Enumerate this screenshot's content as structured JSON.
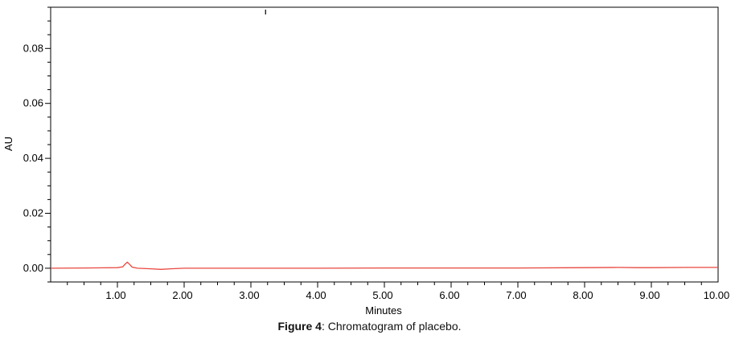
{
  "chart_data": {
    "type": "line",
    "xlabel": "Minutes",
    "ylabel": "AU",
    "xlim": [
      0,
      10
    ],
    "ylim": [
      -0.005,
      0.095
    ],
    "x_ticks": [
      1,
      2,
      3,
      4,
      5,
      6,
      7,
      8,
      9,
      10
    ],
    "x_tick_labels": [
      "1.00",
      "2.00",
      "3.00",
      "4.00",
      "5.00",
      "6.00",
      "7.00",
      "8.00",
      "9.00",
      "10.00"
    ],
    "y_ticks": [
      0,
      0.02,
      0.04,
      0.06,
      0.08
    ],
    "y_tick_labels": [
      "0.00",
      "0.02",
      "0.04",
      "0.06",
      "0.08"
    ],
    "grid": false,
    "series": [
      {
        "color": "#e8473f",
        "x": [
          0.0,
          0.5,
          1.0,
          1.08,
          1.12,
          1.15,
          1.18,
          1.22,
          1.3,
          1.5,
          1.65,
          1.8,
          2.0,
          3.0,
          4.0,
          5.0,
          6.0,
          7.0,
          8.0,
          8.5,
          8.8,
          9.0,
          9.5,
          10.0
        ],
        "y": [
          0.0,
          0.0001,
          0.0002,
          0.0005,
          0.0016,
          0.0022,
          0.0015,
          0.0004,
          0.0,
          -0.0002,
          -0.0004,
          -0.0002,
          0.0,
          0.0,
          0.0,
          0.0001,
          0.0001,
          0.0001,
          0.0002,
          0.0003,
          0.0002,
          0.0002,
          0.0003,
          0.0003
        ]
      }
    ],
    "markers": [
      {
        "type": "event-tick",
        "x": 3.22
      }
    ]
  },
  "caption": {
    "label": "Figure 4",
    "text": ": Chromatogram of placebo."
  }
}
